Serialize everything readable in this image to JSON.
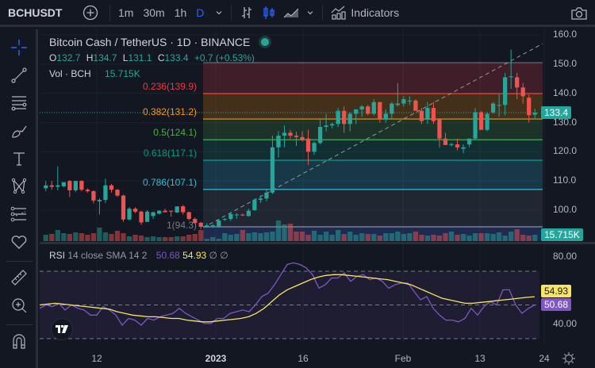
{
  "topbar": {
    "symbol": "BCHUSDT",
    "intervals": [
      "1m",
      "30m",
      "1h",
      "D"
    ],
    "active_interval": "D",
    "indicators_label": "Indicators"
  },
  "legend": {
    "title": "Bitcoin Cash / TetherUS · 1D · BINANCE",
    "o_label": "O",
    "o": "132.7",
    "h_label": "H",
    "h": "134.7",
    "l_label": "L",
    "l": "131.1",
    "c_label": "C",
    "c": "133.4",
    "change": "+0.7 (+0.53%)",
    "vol_label": "Vol · BCH",
    "vol": "15.715K"
  },
  "fib": {
    "levels": [
      {
        "label": "0.236(139.9)",
        "value": 139.9,
        "color": "#f23645"
      },
      {
        "label": "0.382(131.2)",
        "value": 131.2,
        "color": "#ff9800"
      },
      {
        "label": "0.5(124.1)",
        "value": 124.1,
        "color": "#4caf50"
      },
      {
        "label": "0.618(117.1)",
        "value": 117.1,
        "color": "#089981"
      },
      {
        "label": "0.786(107.1)",
        "value": 107.1,
        "color": "#2ebfdd"
      },
      {
        "label": "1(94.3)",
        "value": 94.3,
        "color": "#787b86"
      }
    ]
  },
  "price_axis": {
    "ticks": [
      "160.0",
      "150.0",
      "140.0",
      "130.0",
      "120.0",
      "110.0",
      "100.0"
    ],
    "last_price": "133.4",
    "last_volume": "15.715K"
  },
  "rsi": {
    "label": "RSI",
    "params": "14 close SMA 14 2",
    "rsi_value": "50.68",
    "sma_value": "54.93",
    "extras": "∅ ∅",
    "ticks": [
      "80.00",
      "40.00"
    ],
    "rsi_color": "#7e57c2",
    "sma_color": "#f7e463"
  },
  "time_axis": {
    "labels": [
      "12",
      "2023",
      "16",
      "Feb",
      "13",
      "24"
    ]
  },
  "colors": {
    "up": "#26a69a",
    "down": "#ef5350",
    "accent": "#2962ff",
    "bg": "#131722"
  },
  "chart_data": {
    "type": "candlestick",
    "title": "Bitcoin Cash / TetherUS · 1D · BINANCE",
    "ylim": [
      90,
      162
    ],
    "candles": [
      [
        107.5,
        110.0,
        106.5,
        108.5
      ],
      [
        108.5,
        110.0,
        107.0,
        108.0
      ],
      [
        108.0,
        115.0,
        106.8,
        108.5
      ],
      [
        108.2,
        109.5,
        107.8,
        109.6
      ],
      [
        110.0,
        110.3,
        104.5,
        106.8
      ],
      [
        106.8,
        110.0,
        106.2,
        110.0
      ],
      [
        110.0,
        110.2,
        106.5,
        107.0
      ],
      [
        107.0,
        107.5,
        106.0,
        106.5
      ],
      [
        106.5,
        106.8,
        102.3,
        103.3
      ],
      [
        103.0,
        104.0,
        98.5,
        103.5
      ],
      [
        103.5,
        110.8,
        102.5,
        108.5
      ],
      [
        108.5,
        109.0,
        106.0,
        107.0
      ],
      [
        107.0,
        107.2,
        104.5,
        105.0
      ],
      [
        105.0,
        105.3,
        96.0,
        96.8
      ],
      [
        96.8,
        101.0,
        96.5,
        100.5
      ],
      [
        100.5,
        101.0,
        99.0,
        99.5
      ],
      [
        99.5,
        99.8,
        95.0,
        95.8
      ],
      [
        96.0,
        100.0,
        96.0,
        99.5
      ],
      [
        98.0,
        99.5,
        97.0,
        99.3
      ],
      [
        98.8,
        100.0,
        98.5,
        99.8
      ],
      [
        99.8,
        100.5,
        99.3,
        99.3
      ],
      [
        99.8,
        99.8,
        97.8,
        99.5
      ],
      [
        99.2,
        101.0,
        99.0,
        101.3
      ],
      [
        101.3,
        101.8,
        98.5,
        99.3
      ],
      [
        99.3,
        99.5,
        96.5,
        97.0
      ],
      [
        97.0,
        97.5,
        95.3,
        95.6
      ],
      [
        95.7,
        96.0,
        93.5,
        94.3
      ],
      [
        94.5,
        95.5,
        94.0,
        94.8
      ],
      [
        94.8,
        95.3,
        94.0,
        94.8
      ],
      [
        94.5,
        97.0,
        94.0,
        96.5
      ],
      [
        96.8,
        97.3,
        96.3,
        97.0
      ],
      [
        97.0,
        99.2,
        96.3,
        98.7
      ],
      [
        98.5,
        99.0,
        97.0,
        98.5
      ],
      [
        98.5,
        98.8,
        98.0,
        98.2
      ],
      [
        98.0,
        100.5,
        97.8,
        99.8
      ],
      [
        100.0,
        104.0,
        99.8,
        103.5
      ],
      [
        103.5,
        105.0,
        102.5,
        104.0
      ],
      [
        104.0,
        107.0,
        103.0,
        106.0
      ],
      [
        106.0,
        125.5,
        105.5,
        121.5
      ],
      [
        121.5,
        127.0,
        118.0,
        125.5
      ],
      [
        125.5,
        129.0,
        121.5,
        126.5
      ],
      [
        126.5,
        127.5,
        124.5,
        125.5
      ],
      [
        125.5,
        126.8,
        122.0,
        125.0
      ],
      [
        125.0,
        127.0,
        123.5,
        124.0
      ],
      [
        124.5,
        127.5,
        115.5,
        120.0
      ],
      [
        120.0,
        123.5,
        119.0,
        123.0
      ],
      [
        123.0,
        131.0,
        122.5,
        128.5
      ],
      [
        128.5,
        133.0,
        127.0,
        129.0
      ],
      [
        129.0,
        130.0,
        128.0,
        129.5
      ],
      [
        129.5,
        135.0,
        128.5,
        134.0
      ],
      [
        134.0,
        135.5,
        126.5,
        129.5
      ],
      [
        129.5,
        133.5,
        127.0,
        133.0
      ],
      [
        133.0,
        134.5,
        129.5,
        134.5
      ],
      [
        134.5,
        136.0,
        132.0,
        135.5
      ],
      [
        135.5,
        136.0,
        132.5,
        133.0
      ],
      [
        133.0,
        138.0,
        132.5,
        137.0
      ],
      [
        137.0,
        137.0,
        130.0,
        131.2
      ],
      [
        131.0,
        134.5,
        130.0,
        133.0
      ],
      [
        133.0,
        137.0,
        131.0,
        136.5
      ],
      [
        136.0,
        143.5,
        135.5,
        136.5
      ],
      [
        136.5,
        139.0,
        135.5,
        138.0
      ],
      [
        137.5,
        139.0,
        136.0,
        137.5
      ],
      [
        137.5,
        138.0,
        134.5,
        134.0
      ],
      [
        134.0,
        135.0,
        129.5,
        130.5
      ],
      [
        131.0,
        137.0,
        129.5,
        135.0
      ],
      [
        135.0,
        137.0,
        129.5,
        130.5
      ],
      [
        131.0,
        131.5,
        121.5,
        124.5
      ],
      [
        124.5,
        126.5,
        123.5,
        122.3
      ],
      [
        122.3,
        123.0,
        121.8,
        122.6
      ],
      [
        122.5,
        124.5,
        120.5,
        121.5
      ],
      [
        121.0,
        122.5,
        119.5,
        121.5
      ],
      [
        122.5,
        124.5,
        121.5,
        124.5
      ],
      [
        124.5,
        135.0,
        124.0,
        133.5
      ],
      [
        133.5,
        134.0,
        127.5,
        127.5
      ],
      [
        127.5,
        133.5,
        127.0,
        133.0
      ],
      [
        133.5,
        137.0,
        133.0,
        136.5
      ],
      [
        136.0,
        140.0,
        132.0,
        136.0
      ],
      [
        136.0,
        147.0,
        132.5,
        145.5
      ],
      [
        145.5,
        155.0,
        141.5,
        145.8
      ],
      [
        145.5,
        147.0,
        138.0,
        142.0
      ],
      [
        142.0,
        143.5,
        136.5,
        139.0
      ],
      [
        138.5,
        139.5,
        130.0,
        132.5
      ],
      [
        132.7,
        134.7,
        131.1,
        133.4
      ]
    ]
  }
}
